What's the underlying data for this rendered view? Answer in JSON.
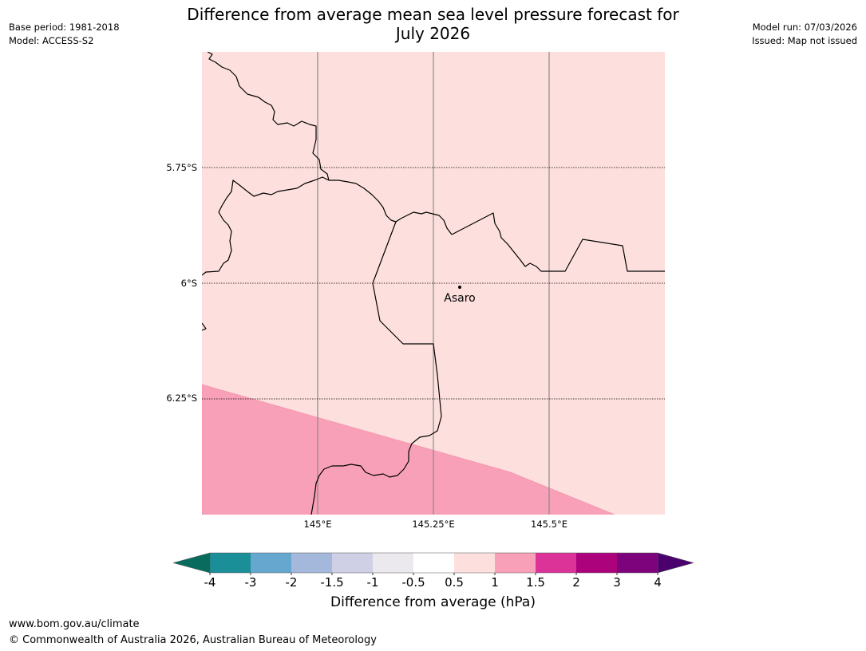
{
  "header": {
    "left": {
      "base_period": "Base period: 1981-2018",
      "model": "Model: ACCESS-S2"
    },
    "right": {
      "model_run": "Model run: 07/03/2026",
      "issued": "Issued: Map not issued"
    },
    "title_line1": "Difference from average mean sea level pressure forecast for",
    "title_line2": "July 2026"
  },
  "map": {
    "background_category": "0.5 to 1",
    "latitudes": [
      {
        "value": -5.75,
        "label": "5.75°S"
      },
      {
        "value": -6.0,
        "label": "6°S"
      },
      {
        "value": -6.25,
        "label": "6.25°S"
      }
    ],
    "longitudes": [
      {
        "value": 145.0,
        "label": "145°E"
      },
      {
        "value": 145.25,
        "label": "145.25°E"
      },
      {
        "value": 145.5,
        "label": "145.5°E"
      }
    ],
    "places": [
      {
        "name": "Asaro"
      }
    ],
    "regions": [
      {
        "category": "1 to 1.5",
        "color": "#f8a0b7"
      }
    ]
  },
  "colorbar": {
    "caption": "Difference from average (hPa)",
    "ticks": [
      "-4",
      "-3",
      "-2",
      "-1.5",
      "-1",
      "-0.5",
      "0.5",
      "1",
      "1.5",
      "2",
      "3",
      "4"
    ],
    "colors": [
      "#1b8f97",
      "#66a7d0",
      "#a4b8dc",
      "#cfd0e6",
      "#ebe9ed",
      "#ffffff",
      "#fde0de",
      "#f8a0b7",
      "#db3398",
      "#ac027c",
      "#7c037c"
    ],
    "under_color": "#086b5d",
    "over_color": "#4b016d"
  },
  "footer": {
    "url": "www.bom.gov.au/climate",
    "copyright": "© Commonwealth of Australia 2026, Australian Bureau of Meteorology"
  }
}
